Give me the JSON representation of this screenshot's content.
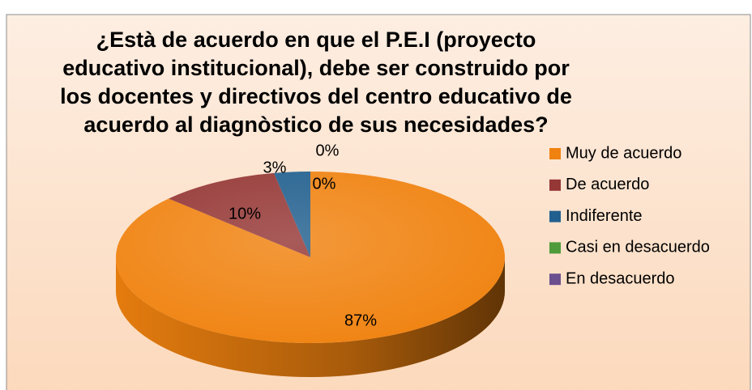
{
  "chart_data": {
    "type": "pie",
    "title": [
      "¿Està de acuerdo en que el P.E.I (proyecto",
      "educativo institucional), debe ser construido por",
      "los docentes y directivos del centro educativo de",
      "acuerdo al diagnòstico de sus necesidades?"
    ],
    "categories": [
      "Muy de acuerdo",
      "De acuerdo",
      "Indiferente",
      "Casi en desacuerdo",
      "En desacuerdo"
    ],
    "values": [
      87,
      10,
      3,
      0,
      0
    ],
    "value_labels": [
      "87%",
      "10%",
      "3%",
      "0%",
      "0%"
    ],
    "colors": [
      "#f0820f",
      "#953735",
      "#215f8e",
      "#4f9a3a",
      "#6b4f8f"
    ],
    "legend": "right"
  }
}
